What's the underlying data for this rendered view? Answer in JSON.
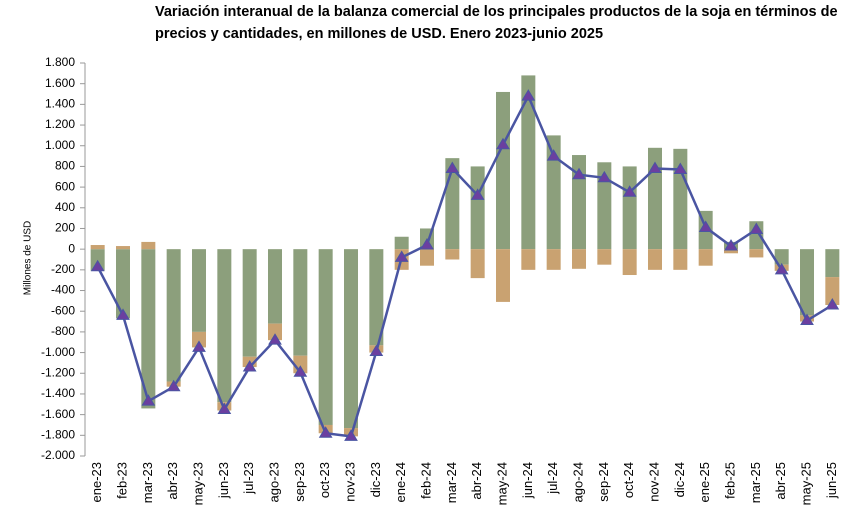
{
  "chart_data": {
    "type": "bar",
    "title": [
      "Variación interanual de la balanza comercial de los principales productos de la soja en términos de",
      "precios y cantidades, en millones de USD. Enero 2023-junio 2025"
    ],
    "ylabel": "Millones de  USD",
    "categories": [
      "ene-23",
      "feb-23",
      "mar-23",
      "abr-23",
      "may-23",
      "jun-23",
      "jul-23",
      "ago-23",
      "sep-23",
      "oct-23",
      "nov-23",
      "dic-23",
      "ene-24",
      "feb-24",
      "mar-24",
      "abr-24",
      "may-24",
      "jun-24",
      "jul-24",
      "ago-24",
      "sep-24",
      "oct-24",
      "nov-24",
      "dic-24",
      "ene-25",
      "feb-25",
      "mar-25",
      "abr-25",
      "may-25",
      "jun-25"
    ],
    "series": [
      {
        "type": "bar",
        "color": "#8c9f7c",
        "values": [
          -210,
          -670,
          -1540,
          -1280,
          -800,
          -1480,
          -1040,
          -720,
          -1030,
          -1700,
          -1730,
          -930,
          120,
          200,
          880,
          800,
          1520,
          1680,
          1100,
          910,
          840,
          800,
          980,
          970,
          370,
          70,
          270,
          -150,
          -640,
          -270
        ]
      },
      {
        "type": "bar",
        "color": "#c9a271",
        "values": [
          40,
          30,
          70,
          -50,
          -150,
          -80,
          -100,
          -160,
          -170,
          -80,
          -80,
          -70,
          -200,
          -160,
          -100,
          -280,
          -510,
          -200,
          -200,
          -190,
          -150,
          -250,
          -200,
          -200,
          -160,
          -40,
          -80,
          -60,
          -60,
          -270
        ]
      },
      {
        "type": "line",
        "color": "#4a55a2",
        "marker_color": "#6b3fa0",
        "values": [
          -170,
          -640,
          -1470,
          -1330,
          -950,
          -1550,
          -1140,
          -880,
          -1190,
          -1780,
          -1810,
          -990,
          -80,
          40,
          780,
          520,
          1010,
          1480,
          900,
          720,
          690,
          550,
          780,
          770,
          210,
          30,
          190,
          -200,
          -690,
          -540
        ]
      }
    ],
    "ylim": [
      -2000,
      1800
    ],
    "yticks": [
      {
        "value": 1800,
        "label": "1.800"
      },
      {
        "value": 1600,
        "label": "1.600"
      },
      {
        "value": 1400,
        "label": "1.400"
      },
      {
        "value": 1200,
        "label": "1.200"
      },
      {
        "value": 1000,
        "label": "1.000"
      },
      800,
      600,
      400,
      200,
      0,
      -200,
      -400,
      -600,
      -800,
      {
        "value": -1000,
        "label": "-1.000"
      },
      {
        "value": -1200,
        "label": "-1.200"
      },
      {
        "value": -1400,
        "label": "-1.400"
      },
      {
        "value": -1600,
        "label": "-1.600"
      },
      {
        "value": -1800,
        "label": "-1.800"
      },
      {
        "value": -2000,
        "label": "-2.000"
      }
    ],
    "grid": false
  }
}
